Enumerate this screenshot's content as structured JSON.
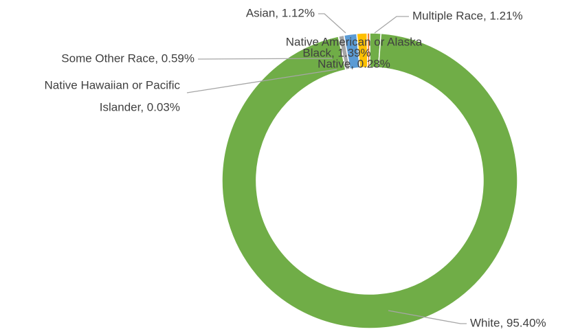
{
  "chart_data": {
    "type": "donut",
    "values": [
      1.21,
      95.4,
      0.03,
      0.59,
      1.39,
      1.12,
      0.28
    ],
    "labels": [
      [
        "Multiple Race, 1.21%"
      ],
      [
        "White, 95.40%"
      ],
      [
        "Native Hawaiian or Pacific",
        "Islander, 0.03%"
      ],
      [
        "Some Other Race, 0.59%"
      ],
      [
        "Black, 1.39%"
      ],
      [
        "Asian, 1.12%"
      ],
      [
        "Native American or Alaska",
        "Native, 0.28%"
      ]
    ],
    "colors": [
      "#70ad47",
      "#70ad47",
      "#264478",
      "#a5a5a5",
      "#5b9bd5",
      "#ffc000",
      "#ed7d31"
    ]
  }
}
